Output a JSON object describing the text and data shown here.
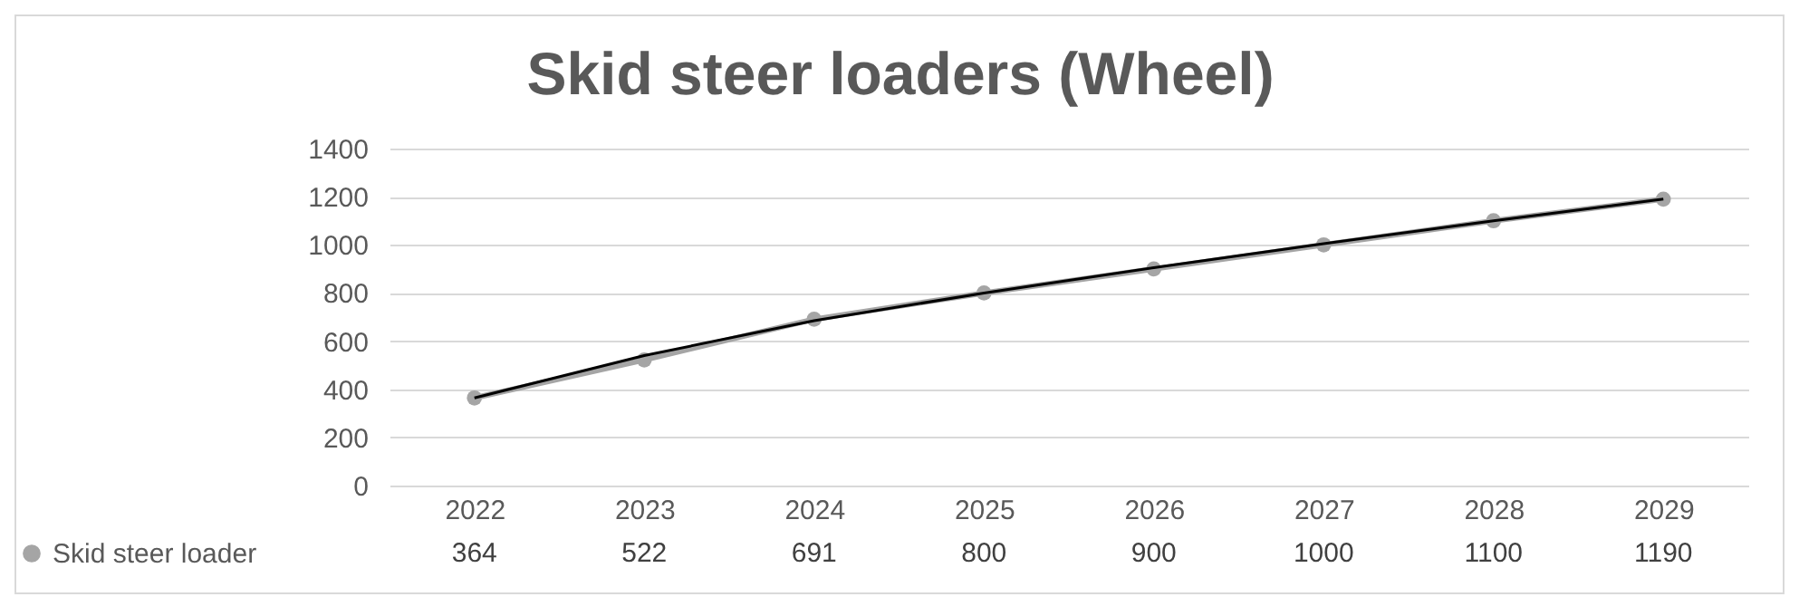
{
  "chart_data": {
    "type": "line",
    "title": "Skid steer loaders (Wheel)",
    "categories": [
      "2022",
      "2023",
      "2024",
      "2025",
      "2026",
      "2027",
      "2028",
      "2029"
    ],
    "series": [
      {
        "name": "Skid steer loader",
        "color": "#a5a5a5",
        "values": [
          364,
          522,
          691,
          800,
          900,
          1000,
          1100,
          1190
        ],
        "marker": "circle",
        "value_labels": [
          "364",
          "522",
          "691",
          "800",
          "900",
          "1000",
          "1100",
          "1190"
        ]
      },
      {
        "type": "line",
        "color": "#000000",
        "values": [
          364,
          540,
          685,
          800,
          905,
          1005,
          1100,
          1190
        ],
        "marker": "none"
      }
    ],
    "ylim": [
      0,
      1400
    ],
    "yticks": [
      0,
      200,
      400,
      600,
      800,
      1000,
      1200,
      1400
    ],
    "grid": "y",
    "legend": "bottom left"
  }
}
